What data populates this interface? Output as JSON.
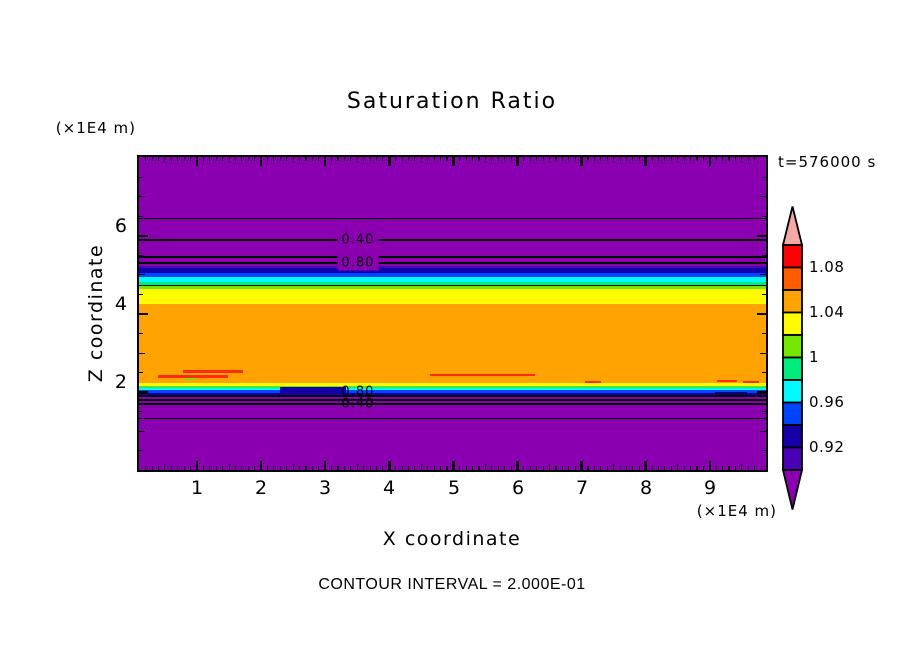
{
  "title": "Saturation Ratio",
  "annotations": {
    "time": "t=576000 s",
    "footnote": "CONTOUR INTERVAL = 2.000E-01",
    "z_axis_unit": "(×1E4 m)",
    "x_axis_unit": "(×1E4 m)"
  },
  "axes": {
    "x": {
      "label": "X coordinate",
      "ticks": [
        "1",
        "2",
        "3",
        "4",
        "5",
        "6",
        "7",
        "8",
        "9"
      ]
    },
    "z": {
      "label": "Z coordinate",
      "ticks": [
        "2",
        "4",
        "6"
      ]
    }
  },
  "colorbar": {
    "labels": [
      "1.08",
      "1.04",
      "1",
      "0.96",
      "0.92"
    ],
    "segments": [
      "red",
      "orangered",
      "orange",
      "yellow",
      "chartreuse",
      "spring",
      "cyan",
      "blue",
      "navy",
      "indigo"
    ],
    "arrow_top": "pink",
    "arrow_bottom": "purple"
  },
  "palette": {
    "purple": "#8A00B0",
    "indigo": "#4A00B4",
    "navy": "#1400A8",
    "blue": "#0044FF",
    "cyan": "#00FAFF",
    "spring": "#00EC7E",
    "chartreuse": "#74E600",
    "yellow": "#FFFB00",
    "orange": "#FFA302",
    "orangered": "#FF5B00",
    "red": "#FC0204",
    "pink": "#F5A9A5",
    "streak_red": "#FF2B00",
    "dark_navy": "#08006E",
    "black": "#000000"
  },
  "chart_data": {
    "type": "heatmap",
    "subtype": "filled-contour",
    "title": "Saturation Ratio",
    "xlabel": "X coordinate",
    "ylabel": "Z coordinate",
    "x_units_multiplier": "(×1E4 m)",
    "z_units_multiplier": "(×1E4 m)",
    "x_range": [
      0,
      9.8
    ],
    "z_range": [
      0,
      8.1
    ],
    "time": "t=576000 s",
    "contour_interval": 0.2,
    "colorbar_tick_values": [
      1.08,
      1.04,
      1,
      0.96,
      0.92
    ],
    "colorbar_segment_step": 0.02,
    "bands": [
      {
        "color": "purple",
        "z_top": 8.1,
        "z_bottom": 5.23,
        "value": "<0.90"
      },
      {
        "color": "indigo",
        "z_top": 5.23,
        "z_bottom": 5.18,
        "value": "0.90-0.92"
      },
      {
        "color": "navy",
        "z_top": 5.18,
        "z_bottom": 5.05,
        "value": "0.92-0.94"
      },
      {
        "color": "blue",
        "z_top": 5.05,
        "z_bottom": 4.95,
        "value": "0.94-0.96"
      },
      {
        "color": "cyan",
        "z_top": 4.95,
        "z_bottom": 4.82,
        "value": "0.96-0.98"
      },
      {
        "color": "spring",
        "z_top": 4.82,
        "z_bottom": 4.72,
        "value": "0.98-1.00"
      },
      {
        "color": "chartreuse",
        "z_top": 4.72,
        "z_bottom": 4.64,
        "value": "1.00-1.02"
      },
      {
        "color": "yellow",
        "z_top": 4.64,
        "z_bottom": 4.26,
        "value": "1.02-1.04"
      },
      {
        "color": "orange",
        "z_top": 4.26,
        "z_bottom": 2.24,
        "value": "1.04-1.06"
      },
      {
        "color": "yellow",
        "z_top": 2.24,
        "z_bottom": 2.16,
        "value": "1.02-1.04"
      },
      {
        "color": "chartreuse",
        "z_top": 2.16,
        "z_bottom": 2.13,
        "value": "1.00-1.02"
      },
      {
        "color": "spring",
        "z_top": 2.13,
        "z_bottom": 2.11,
        "value": "0.98-1.00"
      },
      {
        "color": "cyan",
        "z_top": 2.11,
        "z_bottom": 2.06,
        "value": "0.96-0.98"
      },
      {
        "color": "blue",
        "z_top": 2.06,
        "z_bottom": 1.98,
        "value": "0.94-0.96"
      },
      {
        "color": "navy",
        "z_top": 1.98,
        "z_bottom": 1.9,
        "value": "0.92-0.94"
      },
      {
        "color": "purple",
        "z_top": 1.9,
        "z_bottom": 0.0,
        "value": "<0.90"
      }
    ],
    "contour_lines": [
      {
        "value": "0.20",
        "z": 6.45,
        "w": 1
      },
      {
        "value": "0.40",
        "z": 5.89,
        "w": 2
      },
      {
        "value": "0.60",
        "z": 5.46,
        "w": 2
      },
      {
        "value": "0.80",
        "z": 5.3,
        "w": 2
      },
      {
        "value": "1.00",
        "z": 4.72,
        "w": 1
      },
      {
        "value": "0.80",
        "z": 1.9,
        "w": 2
      },
      {
        "value": "0.60",
        "z": 1.8,
        "w": 2
      },
      {
        "value": "0.40",
        "z": 1.7,
        "w": 2
      },
      {
        "value": "0.20",
        "z": 1.34,
        "w": 1
      }
    ],
    "contour_labels": [
      {
        "text": "0.40",
        "x": 3.51,
        "z": 5.89,
        "bg": true
      },
      {
        "text": "0.80",
        "x": 3.51,
        "z": 5.3,
        "bg": true
      },
      {
        "text": "0.80",
        "x": 3.51,
        "z": 2.01,
        "bg": false
      },
      {
        "text": "0.40",
        "x": 3.51,
        "z": 1.7,
        "bg": false
      }
    ],
    "spots": [
      {
        "color": "streak_red",
        "x": [
          0.78,
          1.72
        ],
        "z": 2.52,
        "h": 3
      },
      {
        "color": "streak_red",
        "x": [
          0.39,
          1.48
        ],
        "z": 2.4,
        "h": 3
      },
      {
        "color": "chartreuse",
        "x": [
          0.81,
          0.97
        ],
        "z": 2.35,
        "h": 2
      },
      {
        "color": "streak_red",
        "x": [
          4.64,
          6.27
        ],
        "z": 2.45,
        "h": 2
      },
      {
        "color": "streak_red",
        "x": [
          7.05,
          7.3
        ],
        "z": 2.26,
        "h": 2
      },
      {
        "color": "streak_red",
        "x": [
          9.11,
          9.42
        ],
        "z": 2.29,
        "h": 2
      },
      {
        "color": "streak_red",
        "x": [
          9.52,
          9.77
        ],
        "z": 2.26,
        "h": 2
      },
      {
        "color": "navy",
        "x": [
          2.29,
          3.32
        ],
        "z": 2.06,
        "h": 6
      },
      {
        "color": "dark_navy",
        "x": [
          9.08,
          9.58
        ],
        "z": 1.97,
        "h": 3
      }
    ]
  }
}
